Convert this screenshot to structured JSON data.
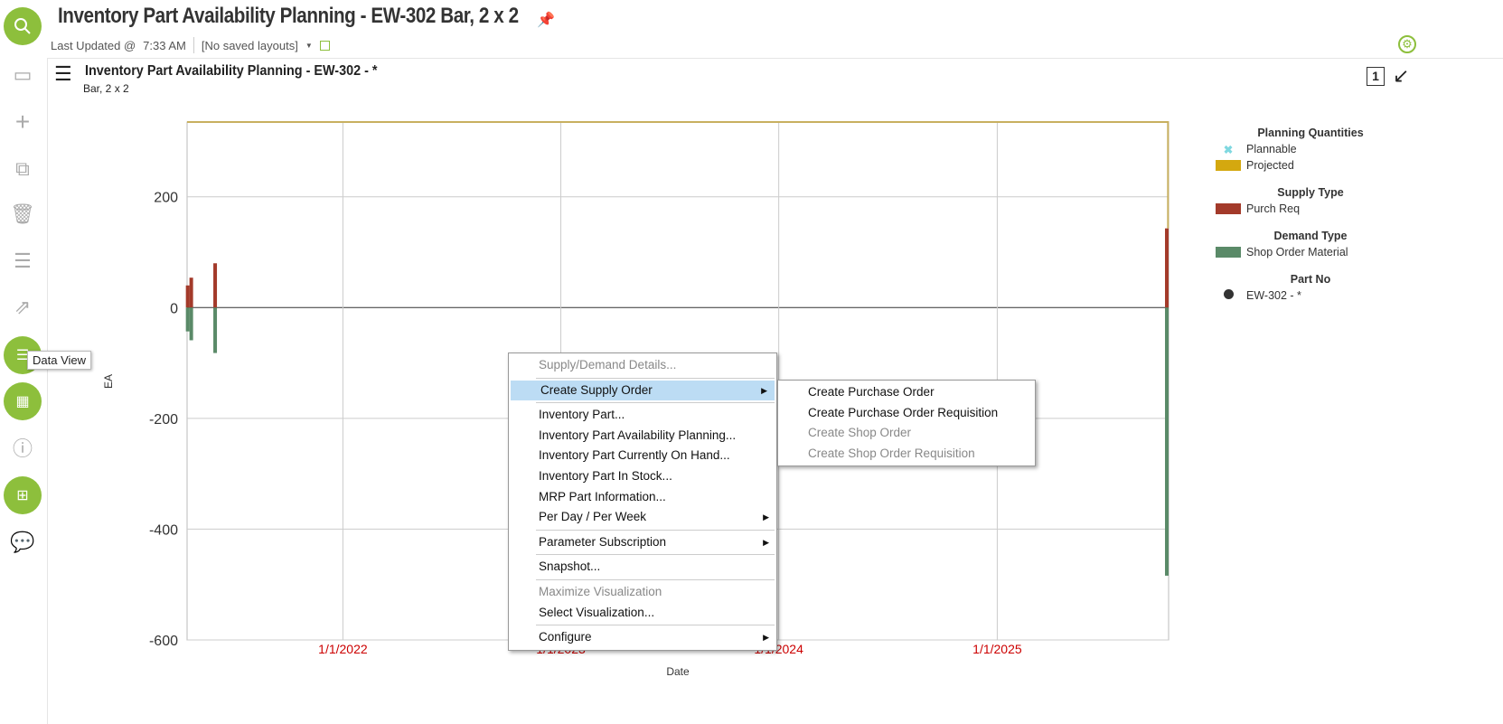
{
  "header": {
    "title": "Inventory Part Availability Planning - EW-302 Bar, 2 x 2",
    "last_updated_label": "Last Updated @",
    "last_updated_time": "7:33 AM",
    "layouts": "[No saved layouts]"
  },
  "tooltip": "Data View",
  "panel": {
    "title": "Inventory Part Availability Planning - EW-302 - *",
    "subtitle": "Bar, 2 x 2"
  },
  "legend": {
    "groups": [
      {
        "title": "Planning Quantities",
        "items": [
          {
            "label": "Plannable",
            "color": "#7fd8e0",
            "marker": "x"
          },
          {
            "label": "Projected",
            "color": "#d4a80f",
            "marker": "box"
          }
        ]
      },
      {
        "title": "Supply Type",
        "items": [
          {
            "label": "Purch Req",
            "color": "#a33a2a",
            "marker": "box"
          }
        ]
      },
      {
        "title": "Demand Type",
        "items": [
          {
            "label": "Shop Order Material",
            "color": "#5a8a68",
            "marker": "box"
          }
        ]
      },
      {
        "title": "Part No",
        "items": [
          {
            "label": "EW-302 - *",
            "color": "#333333",
            "marker": "circle"
          }
        ]
      }
    ]
  },
  "chart_data": {
    "type": "bar",
    "xlabel": "Date",
    "ylabel": "EA",
    "xlim": [
      "2021-04-15",
      "2025-10-15"
    ],
    "ylim": [
      -600,
      335
    ],
    "yticks": [
      200,
      0,
      -200,
      -400,
      -600
    ],
    "xticks": [
      {
        "date": "2022-01-01",
        "label": "1/1/2022"
      },
      {
        "date": "2023-01-01",
        "label": "1/1/2023"
      },
      {
        "date": "2024-01-01",
        "label": "1/1/2024"
      },
      {
        "date": "2025-01-01",
        "label": "1/1/2025"
      }
    ],
    "grid": true,
    "series": [
      {
        "name": "Purch Req",
        "color": "#a33a2a",
        "points": [
          {
            "date": "2021-04-16",
            "value": 40
          },
          {
            "date": "2021-04-22",
            "value": 54
          },
          {
            "date": "2021-06-01",
            "value": 80
          },
          {
            "date": "2025-10-12",
            "value": 143
          }
        ]
      },
      {
        "name": "Shop Order Material",
        "color": "#5a8a68",
        "points": [
          {
            "date": "2021-04-16",
            "value": -43
          },
          {
            "date": "2021-04-22",
            "value": -59
          },
          {
            "date": "2021-06-01",
            "value": -82
          },
          {
            "date": "2025-10-12",
            "value": -484
          }
        ]
      },
      {
        "name": "Projected",
        "color": "#c8b060",
        "type": "line",
        "points": [
          {
            "date": "2021-04-15",
            "value": 335
          },
          {
            "date": "2025-10-14",
            "value": 335
          },
          {
            "date": "2025-10-14",
            "value": 143
          }
        ]
      }
    ]
  },
  "context_menu": {
    "items": [
      {
        "label": "Supply/Demand Details...",
        "disabled": true
      },
      {
        "sep": true
      },
      {
        "label": "Create Supply Order",
        "sub": true,
        "hl": true
      },
      {
        "sep": true
      },
      {
        "label": "Inventory Part..."
      },
      {
        "label": "Inventory Part Availability Planning..."
      },
      {
        "label": "Inventory Part Currently On Hand..."
      },
      {
        "label": "Inventory Part In Stock..."
      },
      {
        "label": "MRP Part Information..."
      },
      {
        "label": "Per Day / Per Week",
        "sub": true
      },
      {
        "sep": true
      },
      {
        "label": "Parameter Subscription",
        "sub": true
      },
      {
        "sep": true
      },
      {
        "label": "Snapshot..."
      },
      {
        "sep": true
      },
      {
        "label": "Maximize Visualization",
        "disabled": true
      },
      {
        "label": "Select Visualization..."
      },
      {
        "sep": true
      },
      {
        "label": "Configure",
        "sub": true
      }
    ]
  },
  "submenu": {
    "items": [
      {
        "label": "Create Purchase Order"
      },
      {
        "label": "Create Purchase Order Requisition"
      },
      {
        "label": "Create Shop Order",
        "disabled": true
      },
      {
        "label": "Create Shop Order Requisition",
        "disabled": true
      }
    ]
  }
}
